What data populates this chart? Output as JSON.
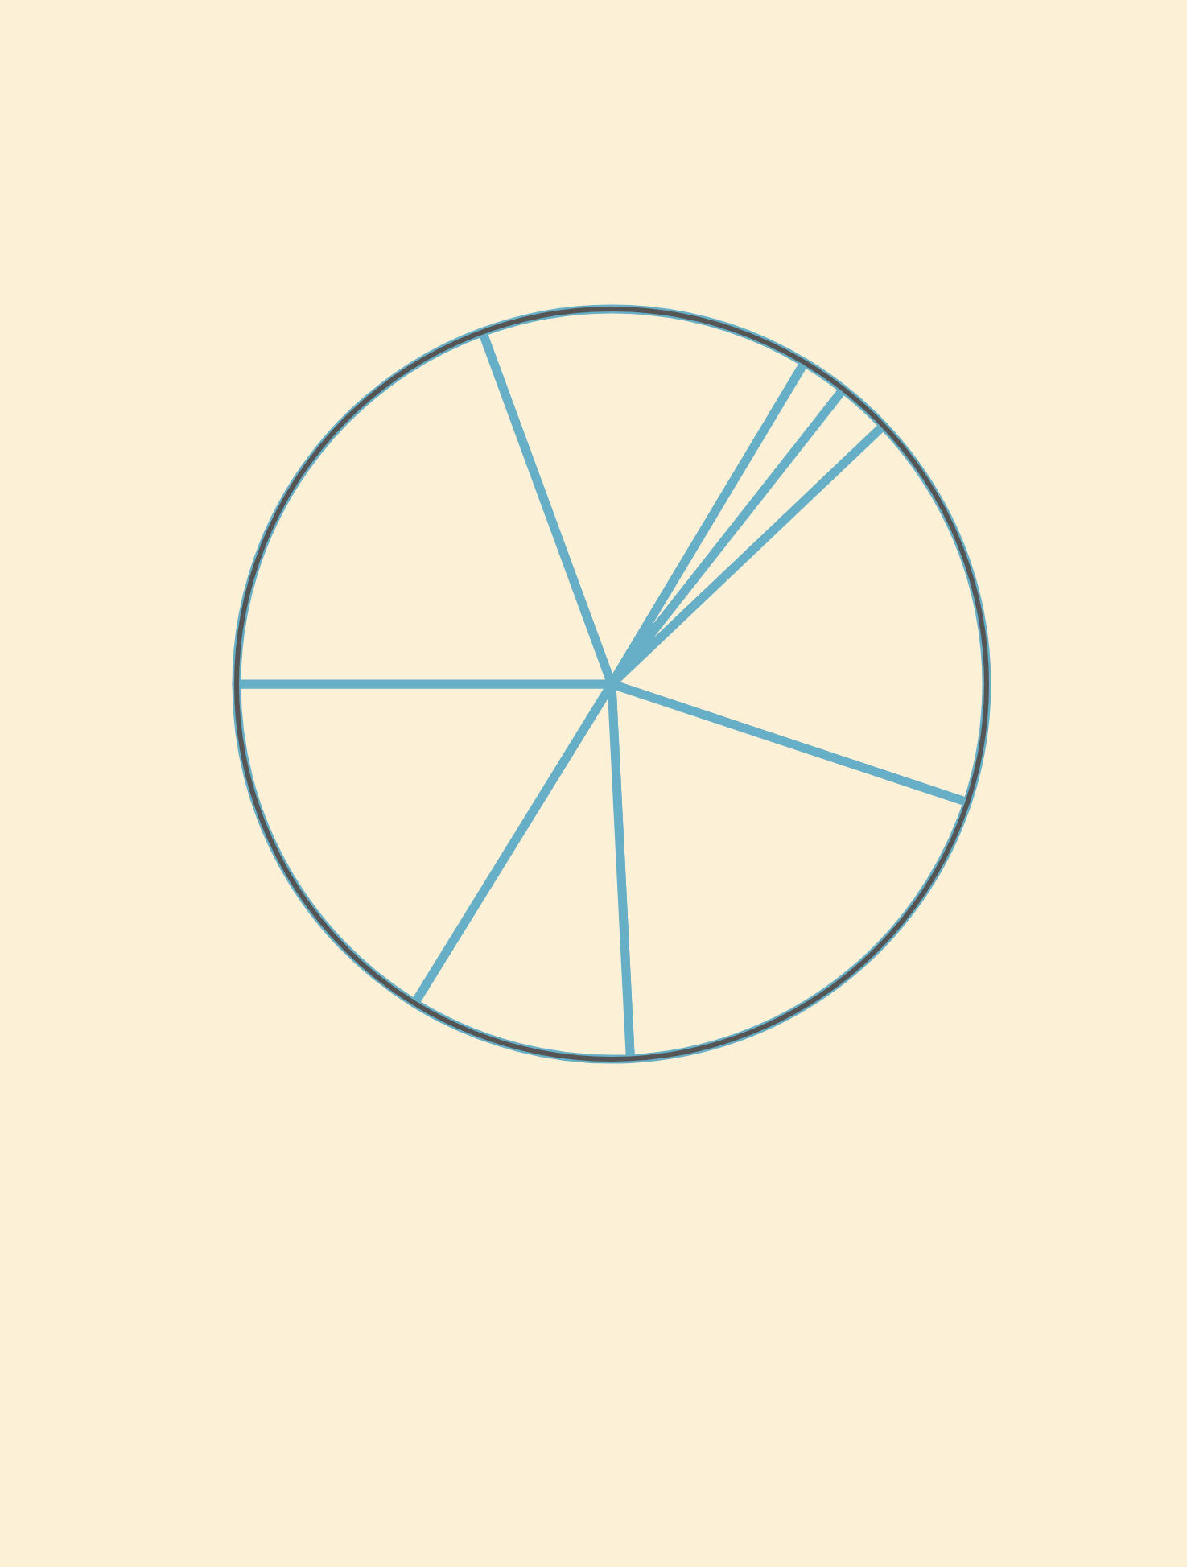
{
  "chart_data": {
    "type": "pie",
    "categories": [
      null,
      null,
      null,
      null,
      null,
      null,
      null,
      null
    ],
    "values": [
      14.2,
      2.0,
      2.3,
      17.2,
      19.1,
      9.6,
      16.2,
      19.4
    ],
    "colors": [
      "#fcf0d7",
      "#fcf0d7",
      "#fcf0d7",
      "#fcf0d7",
      "#fcf0d7",
      "#fcf0d7",
      "#fcf0d7",
      "#fcf0d7"
    ]
  }
}
